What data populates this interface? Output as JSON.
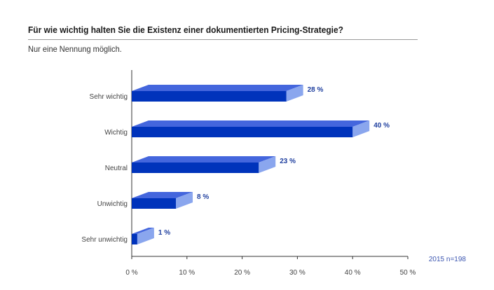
{
  "header": {
    "title": "Für wie wichtig halten Sie die Existenz einer dokumentierten Pricing-Strategie?",
    "subtitle": "Nur eine Nennung möglich."
  },
  "colors": {
    "bar_front": "#0033bb",
    "bar_top": "#4466dd",
    "bar_side": "#8aa6ee",
    "value_label": "#1f3f9f",
    "axis": "#333333"
  },
  "chart_data": {
    "type": "bar",
    "orientation": "horizontal",
    "categories": [
      "Sehr wichtig",
      "Wichtig",
      "Neutral",
      "Unwichtig",
      "Sehr unwichtig"
    ],
    "values": [
      28,
      40,
      23,
      8,
      1
    ],
    "value_labels": [
      "28 %",
      "40 %",
      "23 %",
      "8 %",
      "1 %"
    ],
    "xlim": [
      0,
      50
    ],
    "xticks": [
      0,
      10,
      20,
      30,
      40,
      50
    ],
    "xtick_labels": [
      "0 %",
      "10 %",
      "20 %",
      "30 %",
      "40 %",
      "50 %"
    ],
    "grid": false,
    "style": "3d",
    "annotation": "2015   n=198"
  }
}
